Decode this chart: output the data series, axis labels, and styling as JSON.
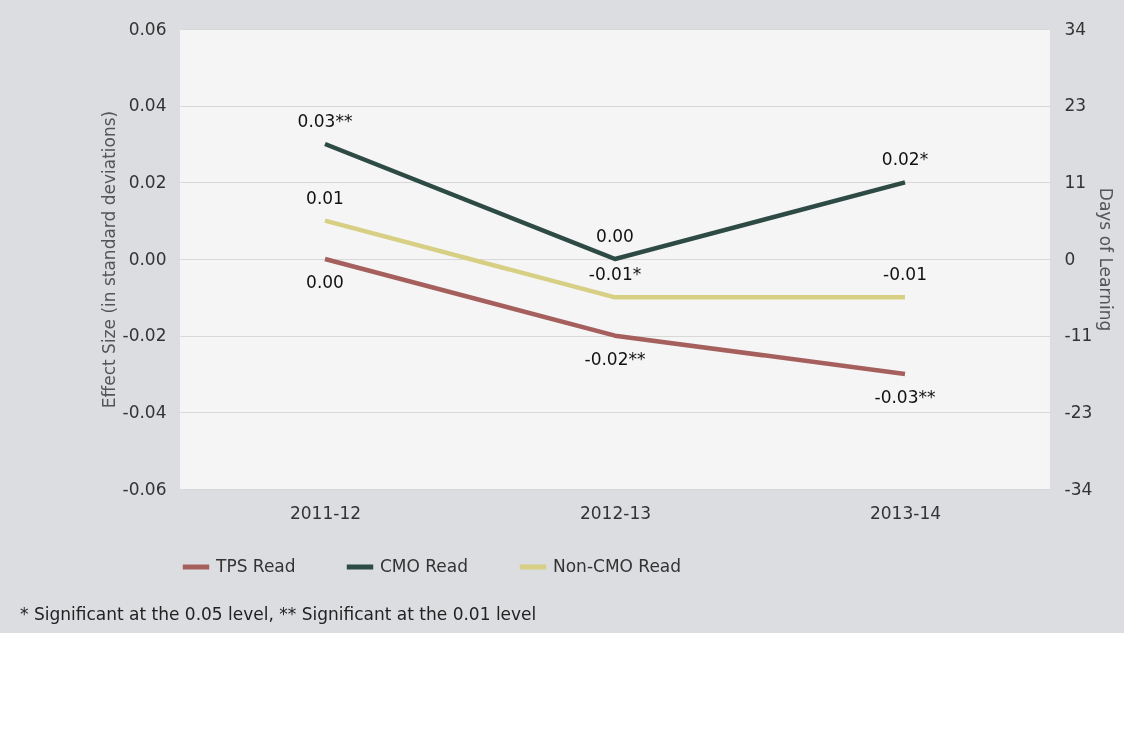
{
  "chart_data": {
    "type": "line",
    "categories": [
      "2011-12",
      "2012-13",
      "2013-14"
    ],
    "series": [
      {
        "name": "TPS Read",
        "color": "#a5605e",
        "values": [
          0.0,
          -0.02,
          -0.03
        ],
        "value_labels": [
          "0.00",
          "-0.02**",
          "-0.03**"
        ]
      },
      {
        "name": "CMO Read",
        "color": "#2e4a45",
        "values": [
          0.03,
          0.0,
          0.02
        ],
        "value_labels": [
          "0.03**",
          "0.00",
          "0.02*"
        ]
      },
      {
        "name": "Non-CMO Read",
        "color": "#d6cf84",
        "values": [
          0.01,
          -0.01,
          -0.01
        ],
        "value_labels": [
          "0.01",
          "-0.01*",
          "-0.01"
        ]
      }
    ],
    "ylabel": "Effect Size (in standard deviations)",
    "y2label": "Days of Learning",
    "ylim": [
      -0.06,
      0.06
    ],
    "yticks": [
      {
        "value": -0.06,
        "label": "-0.06"
      },
      {
        "value": -0.04,
        "label": "-0.04"
      },
      {
        "value": -0.02,
        "label": "-0.02"
      },
      {
        "value": 0,
        "label": "0.00"
      },
      {
        "value": 0.02,
        "label": "0.02"
      },
      {
        "value": 0.04,
        "label": "0.04"
      },
      {
        "value": 0.06,
        "label": "0.06"
      }
    ],
    "y2lim": [
      -34,
      34
    ],
    "y2ticks": [
      -34,
      {
        "value": -22.67,
        "label": "-23"
      },
      {
        "value": -11.33,
        "label": "-11"
      },
      0,
      {
        "value": 11.33,
        "label": "11"
      },
      {
        "value": 22.67,
        "label": "23"
      },
      34
    ],
    "grid": "y",
    "legend": "bottom",
    "marker": "none",
    "line_style": "solid",
    "annotations": [
      "* Significant at the 0.05 level, ** Significant at the 0.01 level"
    ]
  }
}
